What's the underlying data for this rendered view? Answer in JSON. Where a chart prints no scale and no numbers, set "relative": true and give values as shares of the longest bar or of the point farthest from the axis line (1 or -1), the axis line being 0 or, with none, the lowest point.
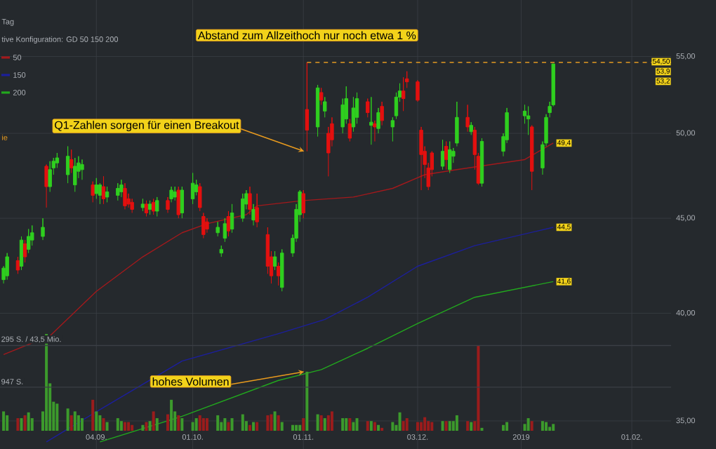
{
  "chart_data": [
    {
      "type": "candlestick",
      "subtitle": "Tag",
      "x": [
        "2018-08-09",
        "2018-08-10",
        "2018-08-13",
        "2018-08-14",
        "2018-08-15",
        "2018-08-16",
        "2018-08-17",
        "2018-08-20",
        "2018-08-21",
        "2018-08-22",
        "2018-08-23",
        "2018-08-24",
        "2018-08-27",
        "2018-08-28",
        "2018-08-29",
        "2018-08-30",
        "2018-08-31",
        "2018-09-03",
        "2018-09-04",
        "2018-09-05",
        "2018-09-06",
        "2018-09-07",
        "2018-09-10",
        "2018-09-11",
        "2018-09-12",
        "2018-09-13",
        "2018-09-14",
        "2018-09-17",
        "2018-09-18",
        "2018-09-19",
        "2018-09-20",
        "2018-09-21",
        "2018-09-24",
        "2018-09-25",
        "2018-09-26",
        "2018-09-27",
        "2018-09-28",
        "2018-10-01",
        "2018-10-02",
        "2018-10-03",
        "2018-10-04",
        "2018-10-05",
        "2018-10-08",
        "2018-10-09",
        "2018-10-10",
        "2018-10-11",
        "2018-10-12",
        "2018-10-15",
        "2018-10-16",
        "2018-10-17",
        "2018-10-18",
        "2018-10-19",
        "2018-10-22",
        "2018-10-23",
        "2018-10-24",
        "2018-10-25",
        "2018-10-26",
        "2018-10-29",
        "2018-10-30",
        "2018-10-31",
        "2018-11-01",
        "2018-11-02",
        "2018-11-05",
        "2018-11-06",
        "2018-11-07",
        "2018-11-08",
        "2018-11-09",
        "2018-11-12",
        "2018-11-13",
        "2018-11-14",
        "2018-11-15",
        "2018-11-16",
        "2018-11-19",
        "2018-11-20",
        "2018-11-21",
        "2018-11-22",
        "2018-11-23",
        "2018-11-26",
        "2018-11-27",
        "2018-11-28",
        "2018-11-29",
        "2018-11-30",
        "2018-12-03",
        "2018-12-04",
        "2018-12-05",
        "2018-12-06",
        "2018-12-07",
        "2018-12-10",
        "2018-12-11",
        "2018-12-12",
        "2018-12-13",
        "2018-12-14",
        "2018-12-17",
        "2018-12-18",
        "2018-12-19",
        "2018-12-20",
        "2018-12-21",
        "2018-12-27",
        "2018-12-28",
        "2019-01-02",
        "2019-01-03",
        "2019-01-04",
        "2019-01-07",
        "2019-01-08",
        "2019-01-09",
        "2019-01-10"
      ],
      "ohlc": [
        [
          41.7,
          42.4,
          41.5,
          42.3
        ],
        [
          41.9,
          43.1,
          41.7,
          42.9
        ],
        [
          42.7,
          42.9,
          42.0,
          42.2
        ],
        [
          42.4,
          44.0,
          42.2,
          43.8
        ],
        [
          43.6,
          43.8,
          42.6,
          42.9
        ],
        [
          43.3,
          44.4,
          43.1,
          44.0
        ],
        [
          43.8,
          44.6,
          43.5,
          44.2
        ],
        [
          44.0,
          45.0,
          43.8,
          44.5
        ],
        [
          48.0,
          48.1,
          45.6,
          46.8
        ],
        [
          46.8,
          48.3,
          46.5,
          47.8
        ],
        [
          47.9,
          48.5,
          47.5,
          48.3
        ],
        [
          48.2,
          48.8,
          47.9,
          48.5
        ],
        [
          47.5,
          49.2,
          47.0,
          48.6
        ],
        [
          48.4,
          49.0,
          47.6,
          47.9
        ],
        [
          46.9,
          48.5,
          46.5,
          48.0
        ],
        [
          47.7,
          48.6,
          47.3,
          48.2
        ],
        [
          47.8,
          48.4,
          47.2,
          48.1
        ],
        [
          46.9,
          47.1,
          45.9,
          46.3
        ],
        [
          46.4,
          47.3,
          46.1,
          46.9
        ],
        [
          46.3,
          47.0,
          45.8,
          46.9
        ],
        [
          46.8,
          47.4,
          45.8,
          46.1
        ],
        [
          46.2,
          46.8,
          45.9,
          46.5
        ],
        [
          46.3,
          47.0,
          46.0,
          46.7
        ],
        [
          46.5,
          47.2,
          46.2,
          46.9
        ],
        [
          46.7,
          47.0,
          45.5,
          45.7
        ],
        [
          46.1,
          46.4,
          45.6,
          45.8
        ],
        [
          45.9,
          46.1,
          45.3,
          45.5
        ],
        [
          45.6,
          46.1,
          45.4,
          45.8
        ],
        [
          45.8,
          46.0,
          45.1,
          45.3
        ],
        [
          45.5,
          46.0,
          45.2,
          45.8
        ],
        [
          45.9,
          46.1,
          45.2,
          45.4
        ],
        [
          45.4,
          46.2,
          45.1,
          46.0
        ],
        [
          46.0,
          46.2,
          45.3,
          45.5
        ],
        [
          46.1,
          46.8,
          45.9,
          46.6
        ],
        [
          46.2,
          46.8,
          46.0,
          46.5
        ],
        [
          46.6,
          46.8,
          45.0,
          45.2
        ],
        [
          45.3,
          46.8,
          45.0,
          46.6
        ],
        [
          46.1,
          47.6,
          45.8,
          47.0
        ],
        [
          46.5,
          47.2,
          46.3,
          46.9
        ],
        [
          46.8,
          47.0,
          45.4,
          45.6
        ],
        [
          45.1,
          45.3,
          43.9,
          44.1
        ],
        [
          44.8,
          45.0,
          44.2,
          44.4
        ],
        [
          44.2,
          44.8,
          44.0,
          44.5
        ],
        [
          43.1,
          43.5,
          42.9,
          43.3
        ],
        [
          43.9,
          45.0,
          43.7,
          44.7
        ],
        [
          45.1,
          45.4,
          44.0,
          44.3
        ],
        [
          44.4,
          45.8,
          44.2,
          45.3
        ],
        [
          45.0,
          46.4,
          44.8,
          46.1
        ],
        [
          45.8,
          46.6,
          45.5,
          46.4
        ],
        [
          46.4,
          46.8,
          45.2,
          45.5
        ],
        [
          44.9,
          45.8,
          44.6,
          45.5
        ],
        [
          45.6,
          46.4,
          44.5,
          44.8
        ],
        [
          44.1,
          44.5,
          42.0,
          42.4
        ],
        [
          42.9,
          43.2,
          41.5,
          41.9
        ],
        [
          42.4,
          43.2,
          42.2,
          42.9
        ],
        [
          42.4,
          42.6,
          41.4,
          41.9
        ],
        [
          41.3,
          43.3,
          41.1,
          43.1
        ],
        [
          43.1,
          44.1,
          42.9,
          43.9
        ],
        [
          43.9,
          45.8,
          43.7,
          45.5
        ],
        [
          45.2,
          46.6,
          44.8,
          46.5
        ],
        [
          46.4,
          46.6,
          45.0,
          45.3
        ],
        [
          51.5,
          54.6,
          48.9,
          50.2
        ],
        [
          50.4,
          53.1,
          49.8,
          52.9
        ],
        [
          52.6,
          52.9,
          51.8,
          52.1
        ],
        [
          51.4,
          52.3,
          51.0,
          52.0
        ],
        [
          50.0,
          50.4,
          47.4,
          48.8
        ],
        [
          50.6,
          51.0,
          49.2,
          49.6
        ],
        [
          50.4,
          52.2,
          50.0,
          51.8
        ],
        [
          50.9,
          53.0,
          50.6,
          52.2
        ],
        [
          50.6,
          50.9,
          49.5,
          49.7
        ],
        [
          50.4,
          52.3,
          50.1,
          51.6
        ],
        [
          51.0,
          52.6,
          50.6,
          52.2
        ],
        [
          52.0,
          52.2,
          51.0,
          51.3
        ],
        [
          50.5,
          52.3,
          49.3,
          50.7
        ],
        [
          50.6,
          50.8,
          49.5,
          50.4
        ],
        [
          50.3,
          51.6,
          50.0,
          51.3
        ],
        [
          51.7,
          52.0,
          50.5,
          50.8
        ],
        [
          50.4,
          51.0,
          49.5,
          50.8
        ],
        [
          51.1,
          52.6,
          50.9,
          52.3
        ],
        [
          52.3,
          53.2,
          52.0,
          52.7
        ],
        [
          52.7,
          53.6,
          51.4,
          52.2
        ],
        [
          53.5,
          54.0,
          52.9,
          53.3
        ],
        [
          53.3,
          53.4,
          52.0,
          52.1
        ],
        [
          50.2,
          50.4,
          46.6,
          48.7
        ],
        [
          48.9,
          49.2,
          47.3,
          48.1
        ],
        [
          47.9,
          48.2,
          46.6,
          46.8
        ],
        [
          48.8,
          48.9,
          47.4,
          47.8
        ],
        [
          48.0,
          49.6,
          47.8,
          48.9
        ],
        [
          49.2,
          49.5,
          47.8,
          48.4
        ],
        [
          47.8,
          49.5,
          47.6,
          49.0
        ],
        [
          48.6,
          49.1,
          48.2,
          48.9
        ],
        [
          49.4,
          52.0,
          49.2,
          51.0
        ],
        [
          51.0,
          51.8,
          50.1,
          50.4
        ],
        [
          50.1,
          50.7,
          49.9,
          50.5
        ],
        [
          50.2,
          50.4,
          47.8,
          48.7
        ],
        [
          48.6,
          48.8,
          46.9,
          47.0
        ],
        [
          47.0,
          49.7,
          46.8,
          49.5
        ],
        [
          48.9,
          50.0,
          48.6,
          49.8
        ],
        [
          49.6,
          51.6,
          49.4,
          51.3
        ],
        [
          51.1,
          51.8,
          50.6,
          51.4
        ],
        [
          50.9,
          51.7,
          49.9,
          51.1
        ],
        [
          50.4,
          50.5,
          46.6,
          47.7
        ],
        [
          47.9,
          49.5,
          47.5,
          49.3
        ],
        [
          49.4,
          51.2,
          49.2,
          51.0
        ],
        [
          51.3,
          52.0,
          51.0,
          51.7
        ],
        [
          51.8,
          54.5,
          51.7,
          54.5
        ]
      ],
      "series": [
        {
          "type": "line",
          "name": "50",
          "color": "#a3191c",
          "x": [
            "2018-08-09",
            "2018-08-22",
            "2018-09-04",
            "2018-09-17",
            "2018-09-28",
            "2018-10-05",
            "2018-10-16",
            "2018-10-19",
            "2018-11-01",
            "2018-11-15",
            "2018-11-26",
            "2018-12-05",
            "2018-12-14",
            "2019-01-02",
            "2019-01-10"
          ],
          "values": [
            38.0,
            38.9,
            41.1,
            42.9,
            44.2,
            44.7,
            45.2,
            45.7,
            46.0,
            46.2,
            46.7,
            47.5,
            47.8,
            48.4,
            49.4
          ],
          "value_labels": [
            null,
            null,
            null,
            null,
            null,
            null,
            null,
            null,
            null,
            null,
            null,
            null,
            null,
            null,
            "49,4"
          ]
        },
        {
          "type": "line",
          "name": "150",
          "color": "#1c1f9c",
          "x": [
            "2018-08-21",
            "2018-09-04",
            "2018-09-28",
            "2018-10-25",
            "2018-11-07",
            "2018-11-19",
            "2018-12-03",
            "2018-12-19",
            "2019-01-10"
          ],
          "values": [
            34.1,
            35.4,
            37.7,
            39.0,
            39.7,
            40.8,
            42.4,
            43.5,
            44.5
          ],
          "value_labels": [
            null,
            null,
            null,
            null,
            null,
            null,
            null,
            null,
            "44,5"
          ]
        },
        {
          "type": "line",
          "name": "200",
          "color": "#22a81e",
          "x": [
            "2018-09-05",
            "2018-09-28",
            "2018-10-25",
            "2018-11-06",
            "2018-11-19",
            "2018-12-03",
            "2018-12-19",
            "2019-01-10"
          ],
          "values": [
            34.1,
            35.2,
            36.8,
            37.3,
            38.3,
            39.5,
            40.8,
            41.6
          ],
          "value_labels": [
            null,
            null,
            null,
            null,
            null,
            null,
            null,
            "41,6"
          ]
        }
      ],
      "xlim": [
        "2018-08-08",
        "2019-02-12"
      ],
      "ylim": [
        33.8,
        59
      ],
      "log": "y",
      "grid": true,
      "legend": "top left",
      "tick_labels": "y",
      "xticks": [
        {
          "value": "2018-09-04",
          "label": null
        },
        {
          "value": "2018-10-01",
          "label": null
        },
        {
          "value": "2018-11-01",
          "label": null
        },
        {
          "value": "2018-12-03",
          "label": null
        },
        {
          "value": "2019-01-01",
          "label": null
        },
        {
          "value": "2019-02-01",
          "label": null
        }
      ],
      "yticks": [
        {
          "value": 35,
          "label": "35,00"
        },
        {
          "value": 40,
          "label": "40,00"
        },
        {
          "value": 45,
          "label": "45,00"
        },
        {
          "value": 50,
          "label": "50,00"
        },
        {
          "value": 55,
          "label": "55,00"
        }
      ],
      "ref_lines": [
        {
          "axis": "y",
          "value": 54.6,
          "label": "Abstand zum Allzeithoch nur noch etwa 1 %",
          "color": "#e39a22",
          "line_style": "dashed"
        }
      ],
      "annotations": [
        "tive Konfiguration: GD 50 150 200",
        "ie",
        "54,50",
        "53,9",
        "53,2",
        {
          "text": "Q1-Zahlen sorgen für einen Breakout",
          "x": "2018-11-02",
          "y": 48.9
        }
      ]
    },
    {
      "type": "bar",
      "relative": true,
      "x": [
        "2018-08-09",
        "2018-08-10",
        "2018-08-13",
        "2018-08-14",
        "2018-08-15",
        "2018-08-16",
        "2018-08-17",
        "2018-08-20",
        "2018-08-21",
        "2018-08-22",
        "2018-08-23",
        "2018-08-24",
        "2018-08-27",
        "2018-08-28",
        "2018-08-29",
        "2018-08-30",
        "2018-08-31",
        "2018-09-03",
        "2018-09-04",
        "2018-09-05",
        "2018-09-06",
        "2018-09-07",
        "2018-09-10",
        "2018-09-11",
        "2018-09-12",
        "2018-09-13",
        "2018-09-14",
        "2018-09-17",
        "2018-09-18",
        "2018-09-19",
        "2018-09-20",
        "2018-09-21",
        "2018-09-24",
        "2018-09-25",
        "2018-09-26",
        "2018-09-27",
        "2018-09-28",
        "2018-10-01",
        "2018-10-02",
        "2018-10-03",
        "2018-10-04",
        "2018-10-05",
        "2018-10-08",
        "2018-10-09",
        "2018-10-10",
        "2018-10-11",
        "2018-10-12",
        "2018-10-15",
        "2018-10-16",
        "2018-10-17",
        "2018-10-18",
        "2018-10-19",
        "2018-10-22",
        "2018-10-23",
        "2018-10-24",
        "2018-10-25",
        "2018-10-26",
        "2018-10-29",
        "2018-10-30",
        "2018-10-31",
        "2018-11-01",
        "2018-11-02",
        "2018-11-05",
        "2018-11-06",
        "2018-11-07",
        "2018-11-08",
        "2018-11-09",
        "2018-11-12",
        "2018-11-13",
        "2018-11-14",
        "2018-11-15",
        "2018-11-16",
        "2018-11-19",
        "2018-11-20",
        "2018-11-21",
        "2018-11-22",
        "2018-11-23",
        "2018-11-26",
        "2018-11-27",
        "2018-11-28",
        "2018-11-29",
        "2018-11-30",
        "2018-12-03",
        "2018-12-04",
        "2018-12-05",
        "2018-12-06",
        "2018-12-07",
        "2018-12-10",
        "2018-12-11",
        "2018-12-12",
        "2018-12-13",
        "2018-12-14",
        "2018-12-17",
        "2018-12-18",
        "2018-12-19",
        "2018-12-20",
        "2018-12-21",
        "2018-12-27",
        "2018-12-28",
        "2019-01-02",
        "2019-01-03",
        "2019-01-04",
        "2019-01-07",
        "2019-01-08",
        "2019-01-09",
        "2019-01-10"
      ],
      "values": [
        0.2,
        0.16,
        0.13,
        0.13,
        0.16,
        0.19,
        0.13,
        0.2,
        1,
        0.49,
        0.3,
        0.28,
        0.23,
        0.16,
        0.2,
        0.16,
        0.13,
        0.32,
        0.2,
        0.16,
        0.13,
        0.09,
        0.13,
        0.1,
        0.09,
        0.09,
        0.06,
        0.06,
        0.09,
        0.1,
        0.2,
        0.13,
        0.17,
        0.32,
        0.2,
        0.16,
        0.13,
        0.09,
        0.13,
        0.16,
        0.13,
        0.13,
        0.16,
        0.09,
        0.13,
        0.09,
        0.13,
        0.17,
        0.1,
        0.06,
        0.09,
        0.09,
        0.16,
        0.17,
        0.2,
        0.16,
        0.09,
        0.06,
        0.06,
        0.06,
        0.13,
        0.61,
        0.17,
        0.16,
        0.13,
        0.16,
        0.2,
        0.13,
        0.13,
        0.13,
        0.09,
        0.13,
        0.1,
        0.1,
        0.09,
        0.06,
        0.03,
        0.09,
        0.06,
        0.19,
        0.1,
        0.13,
        0.09,
        0.09,
        0.14,
        0.1,
        0.09,
        0.1,
        0.1,
        0.1,
        0.1,
        0.16,
        0.1,
        0.09,
        0.1,
        0.88,
        0.03,
        0.06,
        0.09,
        0.07,
        0.13,
        0.1,
        0.1,
        0.09,
        0.04,
        0.07
      ],
      "colors": [
        "#3c9a2c",
        "#3c9a2c",
        "#9a1c1c",
        "#3c9a2c",
        "#9a1c1c",
        "#3c9a2c",
        "#3c9a2c",
        "#3c9a2c",
        "#3c9a2c",
        "#3c9a2c",
        "#3c9a2c",
        "#3c9a2c",
        "#3c9a2c",
        "#9a1c1c",
        "#3c9a2c",
        "#3c9a2c",
        "#3c9a2c",
        "#9a1c1c",
        "#3c9a2c",
        "#3c9a2c",
        "#9a1c1c",
        "#3c9a2c",
        "#3c9a2c",
        "#3c9a2c",
        "#9a1c1c",
        "#9a1c1c",
        "#9a1c1c",
        "#3c9a2c",
        "#9a1c1c",
        "#3c9a2c",
        "#9a1c1c",
        "#3c9a2c",
        "#9a1c1c",
        "#3c9a2c",
        "#3c9a2c",
        "#9a1c1c",
        "#3c9a2c",
        "#3c9a2c",
        "#3c9a2c",
        "#9a1c1c",
        "#9a1c1c",
        "#9a1c1c",
        "#3c9a2c",
        "#3c9a2c",
        "#3c9a2c",
        "#9a1c1c",
        "#3c9a2c",
        "#3c9a2c",
        "#3c9a2c",
        "#9a1c1c",
        "#3c9a2c",
        "#9a1c1c",
        "#9a1c1c",
        "#9a1c1c",
        "#3c9a2c",
        "#9a1c1c",
        "#3c9a2c",
        "#3c9a2c",
        "#3c9a2c",
        "#3c9a2c",
        "#9a1c1c",
        "#3c9a2c",
        "#3c9a2c",
        "#9a1c1c",
        "#3c9a2c",
        "#9a1c1c",
        "#9a1c1c",
        "#3c9a2c",
        "#3c9a2c",
        "#9a1c1c",
        "#3c9a2c",
        "#3c9a2c",
        "#9a1c1c",
        "#3c9a2c",
        "#9a1c1c",
        "#3c9a2c",
        "#9a1c1c",
        "#3c9a2c",
        "#3c9a2c",
        "#3c9a2c",
        "#9a1c1c",
        "#9a1c1c",
        "#9a1c1c",
        "#9a1c1c",
        "#9a1c1c",
        "#9a1c1c",
        "#9a1c1c",
        "#3c9a2c",
        "#9a1c1c",
        "#3c9a2c",
        "#3c9a2c",
        "#3c9a2c",
        "#9a1c1c",
        "#3c9a2c",
        "#9a1c1c",
        "#9a1c1c",
        "#3c9a2c",
        "#3c9a2c",
        "#3c9a2c",
        "#3c9a2c",
        "#3c9a2c",
        "#9a1c1c",
        "#3c9a2c",
        "#3c9a2c",
        "#3c9a2c",
        "#3c9a2c"
      ],
      "xlim": [
        "2018-08-08",
        "2019-02-12"
      ],
      "xticks": [
        {
          "value": "2018-09-04",
          "label": "04.09."
        },
        {
          "value": "2018-10-01",
          "label": "01.10."
        },
        {
          "value": "2018-11-01",
          "label": "01.11."
        },
        {
          "value": "2018-12-03",
          "label": "03.12."
        },
        {
          "value": "2019-01-01",
          "label": "2019"
        },
        {
          "value": "2019-02-01",
          "label": "01.02."
        }
      ],
      "ref_lines": [
        {
          "axis": "y",
          "value": 0.88,
          "label": "295 S. / 43,5 Mio."
        },
        {
          "axis": "y",
          "value": 0.45,
          "label": "947 S."
        }
      ],
      "annotations": [
        {
          "text": "hohes Volumen",
          "x": "2018-11-02",
          "y": 0.61
        }
      ]
    }
  ]
}
